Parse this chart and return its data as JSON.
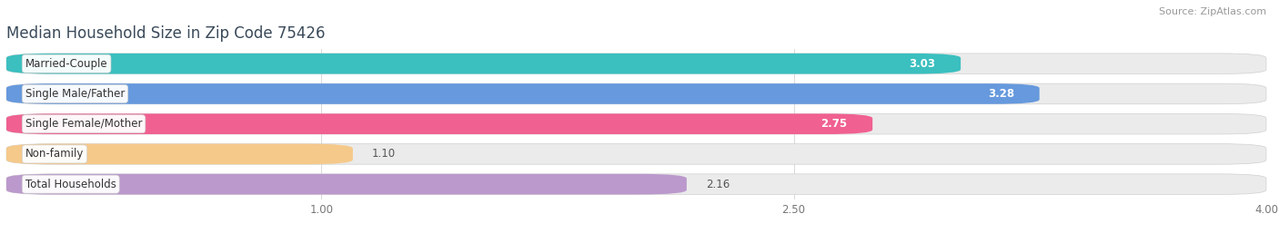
{
  "title": "Median Household Size in Zip Code 75426",
  "source": "Source: ZipAtlas.com",
  "categories": [
    "Married-Couple",
    "Single Male/Father",
    "Single Female/Mother",
    "Non-family",
    "Total Households"
  ],
  "values": [
    3.03,
    3.28,
    2.75,
    1.1,
    2.16
  ],
  "bar_colors": [
    "#3bbfbf",
    "#6699dd",
    "#f06090",
    "#f5c98a",
    "#bb99cc"
  ],
  "background_color": "#ffffff",
  "bar_bg_color": "#ebebeb",
  "xlim_min": 0.0,
  "xlim_max": 4.0,
  "xticks": [
    1.0,
    2.5,
    4.0
  ],
  "label_fontsize": 8.5,
  "value_fontsize": 8.5,
  "title_fontsize": 12,
  "source_fontsize": 8,
  "bar_height": 0.68,
  "bar_gap": 0.08
}
